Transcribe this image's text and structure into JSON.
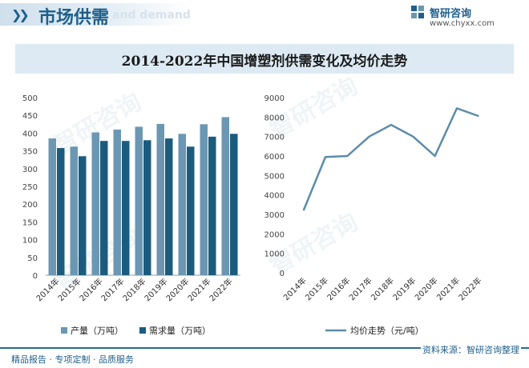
{
  "header": {
    "title": "市场供需",
    "ghost_text": "and demand",
    "chevrons": "❯❯"
  },
  "brand": {
    "name": "智研咨询",
    "url": "www.chyxx.com",
    "logo_icon": "zhiyan-logo-icon"
  },
  "watermark": "智研咨询",
  "footer": {
    "left": "精品报告 · 专项定制 · 品质服务",
    "right": "资料来源：智研咨询整理"
  },
  "colors": {
    "production": "#6b97b3",
    "demand": "#1b5c7e",
    "price_line": "#5b8bab",
    "title_bg": "#ddeaf3",
    "brand": "#1f5f8b"
  },
  "chart_data": [
    {
      "type": "bar",
      "title": "2014-2022年中国增塑剂供需变化及均价走势",
      "categories": [
        "2014年",
        "2015年",
        "2016年",
        "2017年",
        "2018年",
        "2019年",
        "2020年",
        "2021年",
        "2022年"
      ],
      "series": [
        {
          "name": "产量（万吨）",
          "values": [
            385,
            362,
            402,
            410,
            418,
            426,
            398,
            425,
            445
          ]
        },
        {
          "name": "需求量（万吨）",
          "values": [
            358,
            335,
            378,
            378,
            380,
            385,
            362,
            390,
            398
          ]
        }
      ],
      "ylim": [
        0,
        500
      ],
      "yticks": [
        "0",
        "50",
        "100",
        "150",
        "200",
        "250",
        "300",
        "350",
        "400",
        "450",
        "500"
      ],
      "legend_position": "bottom",
      "grid": false
    },
    {
      "type": "line",
      "categories": [
        "2014年",
        "2015年",
        "2016年",
        "2017年",
        "2018年",
        "2019年",
        "2020年",
        "2021年",
        "2022年"
      ],
      "series": [
        {
          "name": "均价走势（元/吨）",
          "values": [
            3200,
            5950,
            6000,
            7000,
            7600,
            7000,
            6000,
            8450,
            8050
          ]
        }
      ],
      "ylim": [
        0,
        9000
      ],
      "yticks": [
        "0",
        "1000",
        "2000",
        "3000",
        "4000",
        "5000",
        "6000",
        "7000",
        "8000",
        "9000"
      ],
      "legend_position": "bottom",
      "grid": false
    }
  ]
}
